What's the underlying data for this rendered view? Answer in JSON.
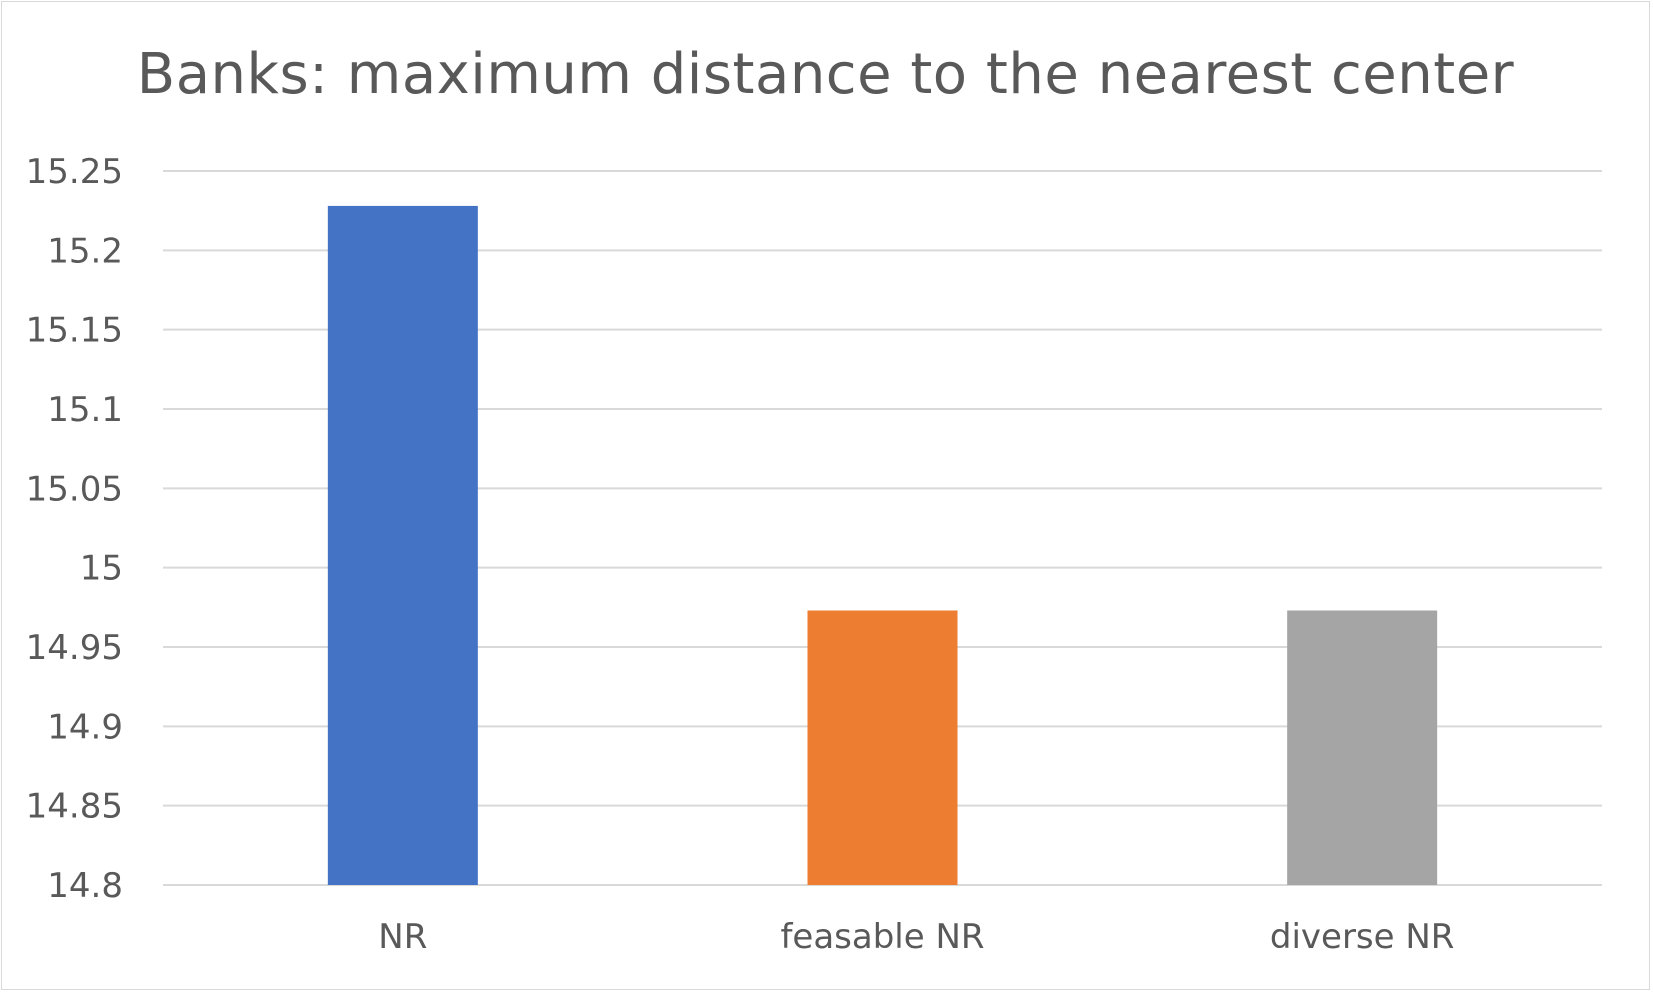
{
  "chart_data": {
    "type": "bar",
    "title": "Banks: maximum distance to the nearest center",
    "xlabel": "",
    "ylabel": "",
    "categories": [
      "NR",
      "feasable NR",
      "diverse NR"
    ],
    "values": [
      15.228,
      14.973,
      14.973
    ],
    "colors": [
      "#4472c4",
      "#ed7d31",
      "#a5a5a5"
    ],
    "ylim": [
      14.8,
      15.25
    ],
    "yticks": [
      "14.8",
      "14.85",
      "14.9",
      "14.95",
      "15",
      "15.05",
      "15.1",
      "15.15",
      "15.2",
      "15.25"
    ],
    "grid": true,
    "legend": "none",
    "gridline_color": "#d9d9d9",
    "text_color": "#595959"
  }
}
